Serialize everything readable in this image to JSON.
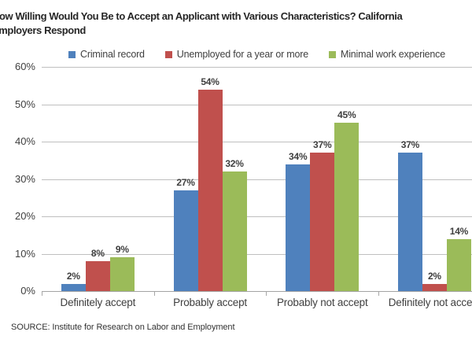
{
  "header": {
    "title_lines": [
      "How Willing Would You Be to Accept an Applicant with Various Characteristics? California",
      "Employers Respond"
    ]
  },
  "footer": {
    "source": "SOURCE: Institute for Research on Labor and Employment"
  },
  "chart_data": {
    "type": "bar",
    "title": "How Willing Would You Be to Accept an Applicant with Various Characteristics? California Employers Respond",
    "categories": [
      "Definitely accept",
      "Probably accept",
      "Probably not accept",
      "Definitely not accept"
    ],
    "series": [
      {
        "name": "Criminal record",
        "color": "#4F81BD",
        "values": [
          2,
          27,
          34,
          37
        ]
      },
      {
        "name": "Unemployed for a year or more",
        "color": "#C0504D",
        "values": [
          8,
          54,
          37,
          2
        ]
      },
      {
        "name": "Minimal work experience",
        "color": "#9BBB59",
        "values": [
          9,
          32,
          45,
          14
        ]
      }
    ],
    "value_label_suffix": "%",
    "xlabel": "",
    "ylabel": "",
    "ylim": [
      0,
      60
    ],
    "ytick_step": 10,
    "ytick_labels": [
      "0%",
      "10%",
      "20%",
      "30%",
      "40%",
      "50%",
      "60%"
    ],
    "grid": true,
    "legend_position": "top"
  },
  "colors": {
    "grid": "#bfbfbf",
    "axis": "#a3a3a3",
    "text": "#3f3f3f",
    "title": "#262626",
    "background": "#ffffff"
  }
}
